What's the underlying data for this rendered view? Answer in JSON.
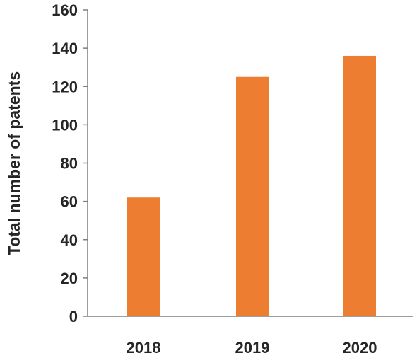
{
  "chart_data": {
    "type": "bar",
    "title": "",
    "xlabel": "",
    "ylabel": "Total number of patents",
    "categories": [
      "2018",
      "2019",
      "2020"
    ],
    "values": [
      62,
      125,
      136
    ],
    "ylim": [
      0,
      160
    ],
    "yticks": [
      0,
      20,
      40,
      60,
      80,
      100,
      120,
      140,
      160
    ],
    "grid": false,
    "legend": "none",
    "colors": {
      "bar": "#ED7D31",
      "axis": "#7F7F7F",
      "text": "#262626"
    }
  }
}
